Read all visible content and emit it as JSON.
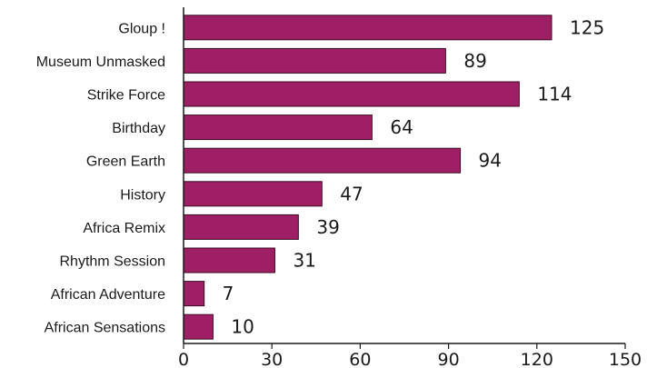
{
  "chart_data": {
    "type": "bar",
    "orientation": "horizontal",
    "categories": [
      "Gloup !",
      "Museum Unmasked",
      "Strike Force",
      "Birthday",
      "Green Earth",
      "History",
      "Africa Remix",
      "Rhythm Session",
      "African Adventure",
      "African Sensations"
    ],
    "values": [
      125,
      89,
      114,
      64,
      94,
      47,
      39,
      31,
      7,
      10
    ],
    "xlim": [
      0,
      150
    ],
    "xticks": [
      0,
      30,
      60,
      90,
      120,
      150
    ],
    "xtick_labels": [
      "0",
      "30",
      "60",
      "90",
      "120",
      "150"
    ],
    "title": "",
    "xlabel": "",
    "ylabel": "",
    "grid": false,
    "bar_color": "#9e1f63",
    "bar_stroke": "#3d0a25"
  }
}
